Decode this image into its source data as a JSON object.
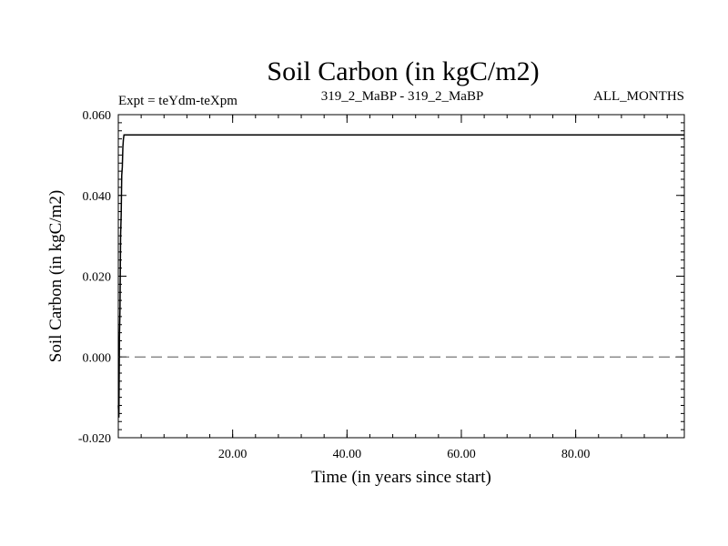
{
  "chart_data": {
    "type": "line",
    "title": "Soil Carbon (in kgC/m2)",
    "subtitle_left": "Expt = teYdm-teXpm",
    "subtitle_center": "319_2_MaBP - 319_2_MaBP",
    "subtitle_right": "ALL_MONTHS",
    "xlabel": "Time (in years since start)",
    "ylabel": "Soil Carbon (in kgC/m2)",
    "xlim": [
      0,
      99
    ],
    "ylim": [
      -0.02,
      0.06
    ],
    "x_ticks": [
      20,
      40,
      60,
      80
    ],
    "x_tick_labels": [
      "20.00",
      "40.00",
      "60.00",
      "80.00"
    ],
    "y_ticks": [
      -0.02,
      0.0,
      0.02,
      0.04,
      0.06
    ],
    "y_tick_labels": [
      "-0.020",
      "0.000",
      "0.020",
      "0.040",
      "0.060"
    ],
    "reference_line": {
      "y": 0.0,
      "style": "dashed"
    },
    "series": [
      {
        "color": "#000000",
        "x": [
          0,
          0.1,
          0.2,
          0.3,
          0.4,
          0.5,
          0.6,
          0.7,
          0.8,
          0.9,
          1.0,
          1.2,
          99
        ],
        "y": [
          -0.012,
          -0.015,
          0.005,
          0.012,
          0.03,
          0.035,
          0.045,
          0.047,
          0.052,
          0.054,
          0.055,
          0.055,
          0.055
        ]
      }
    ]
  }
}
